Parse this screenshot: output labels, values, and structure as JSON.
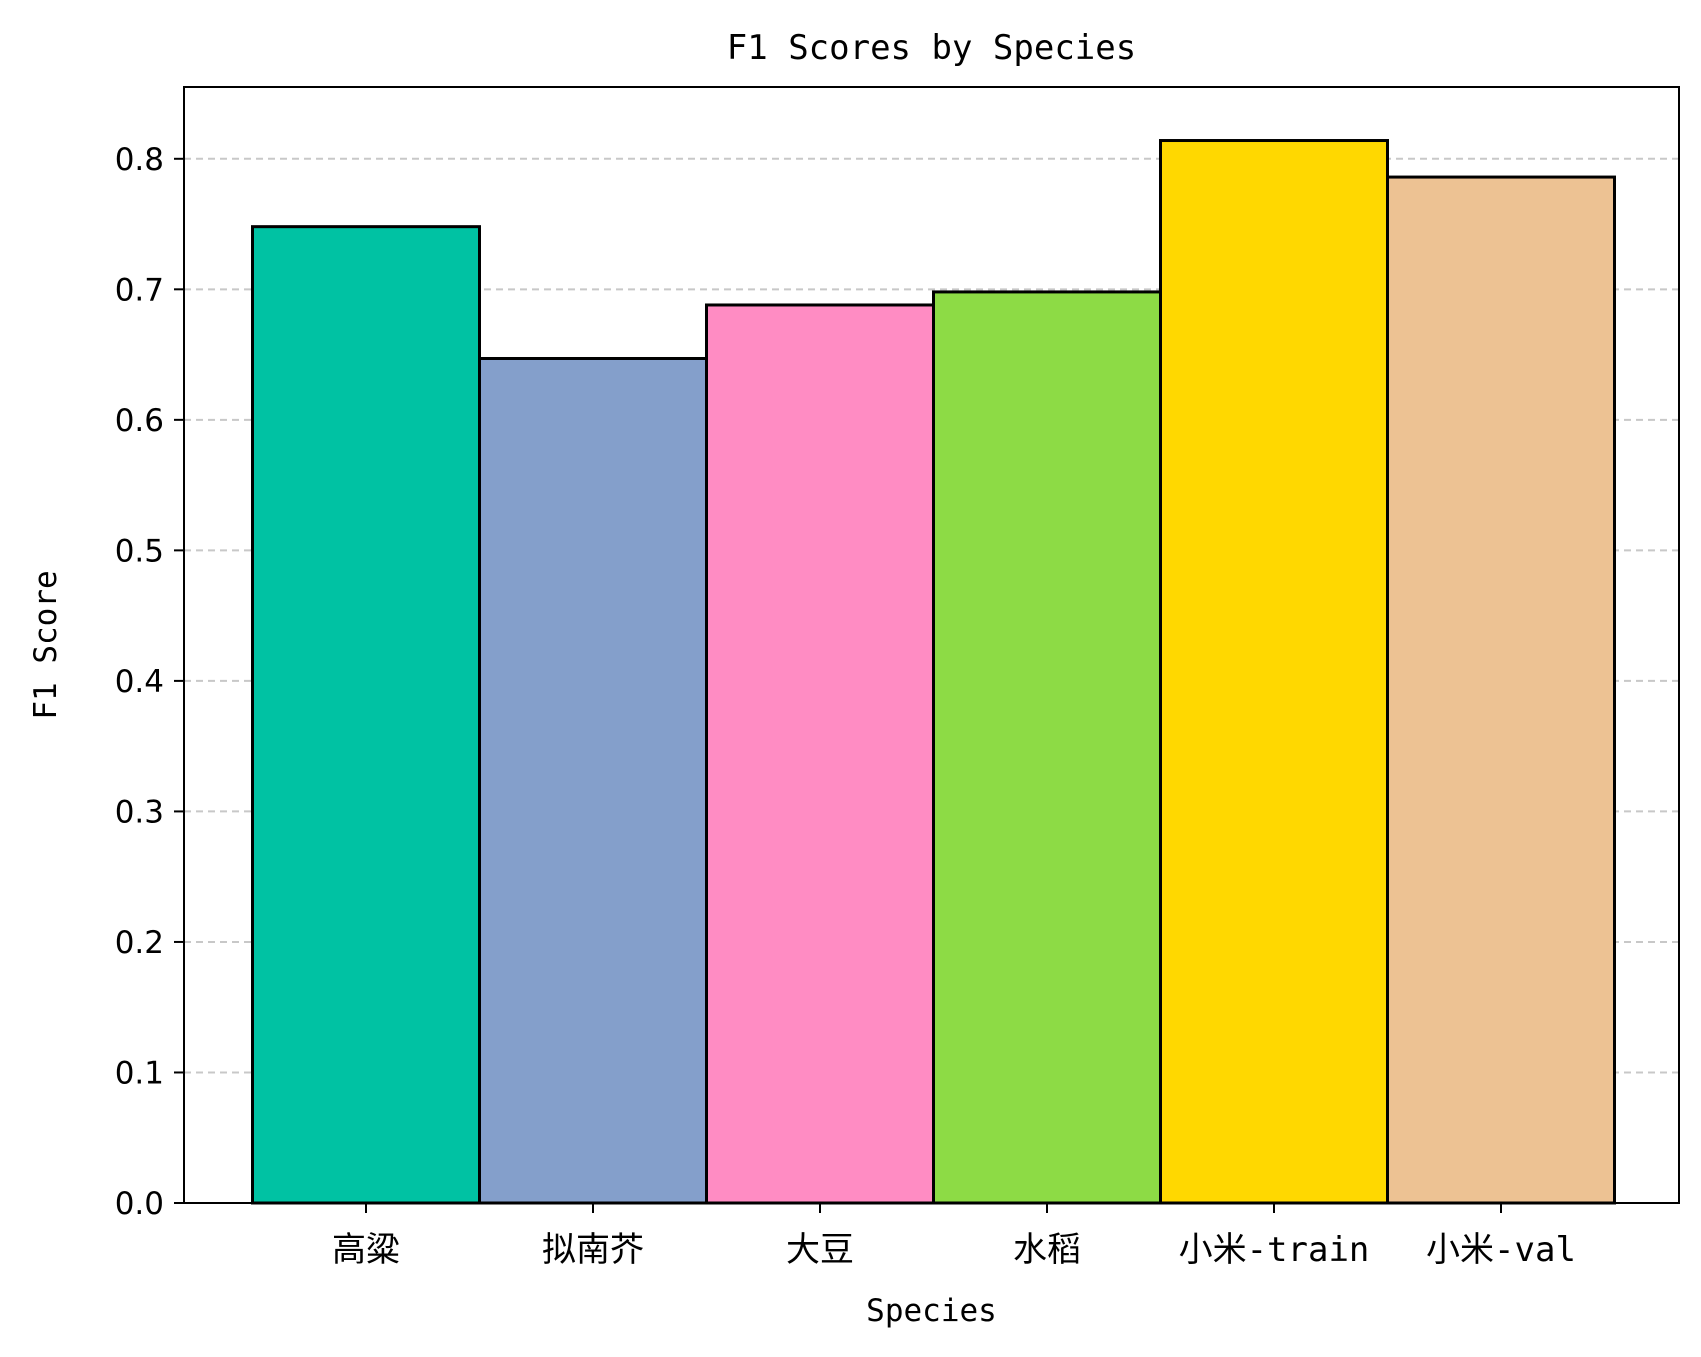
{
  "chart_data": {
    "type": "bar",
    "title": "F1 Scores by Species",
    "xlabel": "Species",
    "ylabel": "F1 Score",
    "categories": [
      "高粱",
      "拟南芥",
      "大豆",
      "水稻",
      "小米-train",
      "小米-val"
    ],
    "values": [
      0.748,
      0.647,
      0.688,
      0.698,
      0.814,
      0.786
    ],
    "colors": [
      "#00c2a3",
      "#849fcb",
      "#ff8cc3",
      "#8ddb45",
      "#ffd800",
      "#edc293"
    ],
    "edge_color": "#000000",
    "grid_color": "#c8c8c8",
    "ylim": [
      0,
      0.855
    ],
    "yticks": [
      0.0,
      0.1,
      0.2,
      0.3,
      0.4,
      0.5,
      0.6,
      0.7,
      0.8
    ],
    "ytick_labels": [
      "0.0",
      "0.1",
      "0.2",
      "0.3",
      "0.4",
      "0.5",
      "0.6",
      "0.7",
      "0.8"
    ],
    "grid": "y-dashed",
    "legend": "none"
  }
}
